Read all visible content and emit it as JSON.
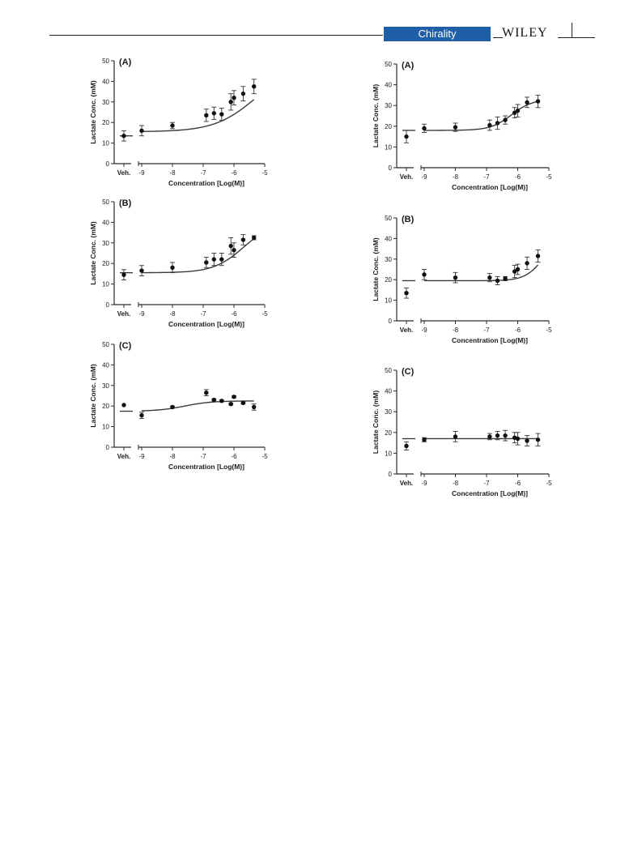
{
  "header": {
    "journal": "Chirality",
    "publisher": "WILEY"
  },
  "chart_data": [
    {
      "type": "scatter",
      "panel_label": "(A)",
      "xlabel": "Concentration [Log(M)]",
      "ylabel": "Lactate Conc. (mM)",
      "vehicle_label": "Veh.",
      "ylim": [
        0,
        50
      ],
      "yticks": [
        0,
        10,
        20,
        30,
        40,
        50
      ],
      "xlim": [
        -9,
        -5
      ],
      "xticks": [
        -9,
        -8,
        -7,
        -6,
        -5
      ],
      "vehicle": {
        "y": 13.5,
        "err": 2.5,
        "fit": 13.5
      },
      "series": [
        {
          "x": [
            -9,
            -8,
            -6.9,
            -6.65,
            -6.4,
            -6.1,
            -6.0,
            -5.7,
            -5.35
          ],
          "y": [
            16,
            18.5,
            23.5,
            24.5,
            24,
            30,
            32,
            34,
            37.5
          ],
          "err": [
            2.5,
            1.5,
            3,
            3,
            3,
            4,
            3.5,
            3.5,
            3.5
          ]
        }
      ],
      "fit": {
        "bottom": 15.5,
        "top": 48,
        "logec50": -5.3,
        "hill": 0.65
      }
    },
    {
      "type": "scatter",
      "panel_label": "(B)",
      "xlabel": "Concentration [Log(M)]",
      "ylabel": "Lactate Conc. (mM)",
      "vehicle_label": "Veh.",
      "ylim": [
        0,
        50
      ],
      "yticks": [
        0,
        10,
        20,
        30,
        40,
        50
      ],
      "xlim": [
        -9,
        -5
      ],
      "xticks": [
        -9,
        -8,
        -7,
        -6,
        -5
      ],
      "vehicle": {
        "y": 14.5,
        "err": 2.5,
        "fit": 15.5
      },
      "series": [
        {
          "x": [
            -9,
            -8,
            -6.9,
            -6.65,
            -6.4,
            -6.1,
            -6.0,
            -5.7,
            -5.35
          ],
          "y": [
            16.5,
            18,
            20.5,
            22,
            22,
            28.5,
            26.5,
            31.5,
            32.5
          ],
          "err": [
            2.5,
            2.5,
            2.5,
            3,
            3,
            4,
            3.5,
            2.5,
            1
          ]
        }
      ],
      "fit": {
        "bottom": 15.5,
        "top": 40,
        "logec50": -5.7,
        "hill": 0.9
      }
    },
    {
      "type": "scatter",
      "panel_label": "(C)",
      "xlabel": "Concentration [Log(M)]",
      "ylabel": "Lactate Conc. (mM)",
      "vehicle_label": "Veh.",
      "ylim": [
        0,
        50
      ],
      "yticks": [
        0,
        10,
        20,
        30,
        40,
        50
      ],
      "xlim": [
        -9,
        -5
      ],
      "xticks": [
        -9,
        -8,
        -7,
        -6,
        -5
      ],
      "vehicle": {
        "y": 20.5,
        "err": 0,
        "fit": 17.5
      },
      "series": [
        {
          "x": [
            -9,
            -8,
            -6.9,
            -6.65,
            -6.4,
            -6.1,
            -6.0,
            -5.7,
            -5.35
          ],
          "y": [
            15.5,
            19.5,
            26.5,
            23,
            22.5,
            21,
            24.5,
            21.5,
            19.5
          ],
          "err": [
            1.5,
            0.5,
            1.5,
            0.5,
            0.5,
            0.5,
            0.5,
            0.5,
            1.5
          ]
        }
      ],
      "fit": {
        "bottom": 17.5,
        "top": 22.5,
        "logec50": -7.6,
        "hill": 1.0
      }
    },
    {
      "type": "scatter",
      "panel_label": "(A)",
      "xlabel": "Concentration [Log(M)]",
      "ylabel": "Lactate Conc. (mM)",
      "vehicle_label": "Veh.",
      "ylim": [
        0,
        50
      ],
      "yticks": [
        0,
        10,
        20,
        30,
        40,
        50
      ],
      "xlim": [
        -9,
        -5
      ],
      "xticks": [
        -9,
        -8,
        -7,
        -6,
        -5
      ],
      "vehicle": {
        "y": 15,
        "err": 3,
        "fit": 18
      },
      "series": [
        {
          "x": [
            -9,
            -8,
            -6.9,
            -6.65,
            -6.4,
            -6.1,
            -6.0,
            -5.7,
            -5.35
          ],
          "y": [
            19,
            19.5,
            20.5,
            21.5,
            23,
            26.5,
            27.5,
            31.5,
            32
          ],
          "err": [
            2,
            2,
            2.5,
            3,
            2,
            2.5,
            3,
            2.5,
            3
          ]
        }
      ],
      "fit": {
        "bottom": 18,
        "top": 33,
        "logec50": -6.2,
        "hill": 1.3
      }
    },
    {
      "type": "scatter",
      "panel_label": "(B)",
      "xlabel": "Concentration [Log(M)]",
      "ylabel": "Lactate Conc. (mM)",
      "vehicle_label": "Veh.",
      "ylim": [
        0,
        50
      ],
      "yticks": [
        0,
        10,
        20,
        30,
        40,
        50
      ],
      "xlim": [
        -9,
        -5
      ],
      "xticks": [
        -9,
        -8,
        -7,
        -6,
        -5
      ],
      "vehicle": {
        "y": 13.5,
        "err": 2.5,
        "fit": 19.5
      },
      "series": [
        {
          "x": [
            -9,
            -8,
            -6.9,
            -6.65,
            -6.4,
            -6.1,
            -6.0,
            -5.7,
            -5.35
          ],
          "y": [
            22.5,
            21,
            21,
            19.5,
            20.5,
            24,
            25,
            28,
            31.5
          ],
          "err": [
            2.5,
            2.5,
            2,
            2,
            1,
            3,
            2.5,
            3,
            3
          ]
        }
      ],
      "fit": {
        "bottom": 19.5,
        "top": 40,
        "logec50": -5.2,
        "hill": 1.5
      }
    },
    {
      "type": "scatter",
      "panel_label": "(C)",
      "xlabel": "Concentration [Log(M)]",
      "ylabel": "Lactate Conc. (mM)",
      "vehicle_label": "Veh.",
      "ylim": [
        0,
        50
      ],
      "yticks": [
        0,
        10,
        20,
        30,
        40,
        50
      ],
      "xlim": [
        -9,
        -5
      ],
      "xticks": [
        -9,
        -8,
        -7,
        -6,
        -5
      ],
      "vehicle": {
        "y": 13.5,
        "err": 2,
        "fit": 17
      },
      "series": [
        {
          "x": [
            -9,
            -8,
            -6.9,
            -6.65,
            -6.4,
            -6.1,
            -6.0,
            -5.7,
            -5.35
          ],
          "y": [
            16.5,
            18,
            18,
            18.5,
            18.5,
            17.5,
            17,
            16,
            16.5
          ],
          "err": [
            1,
            2.5,
            1.5,
            2,
            2.5,
            2.5,
            3,
            2.5,
            3
          ]
        }
      ],
      "fit": {
        "bottom": 17,
        "top": 17,
        "logec50": -7,
        "hill": 1
      }
    }
  ]
}
